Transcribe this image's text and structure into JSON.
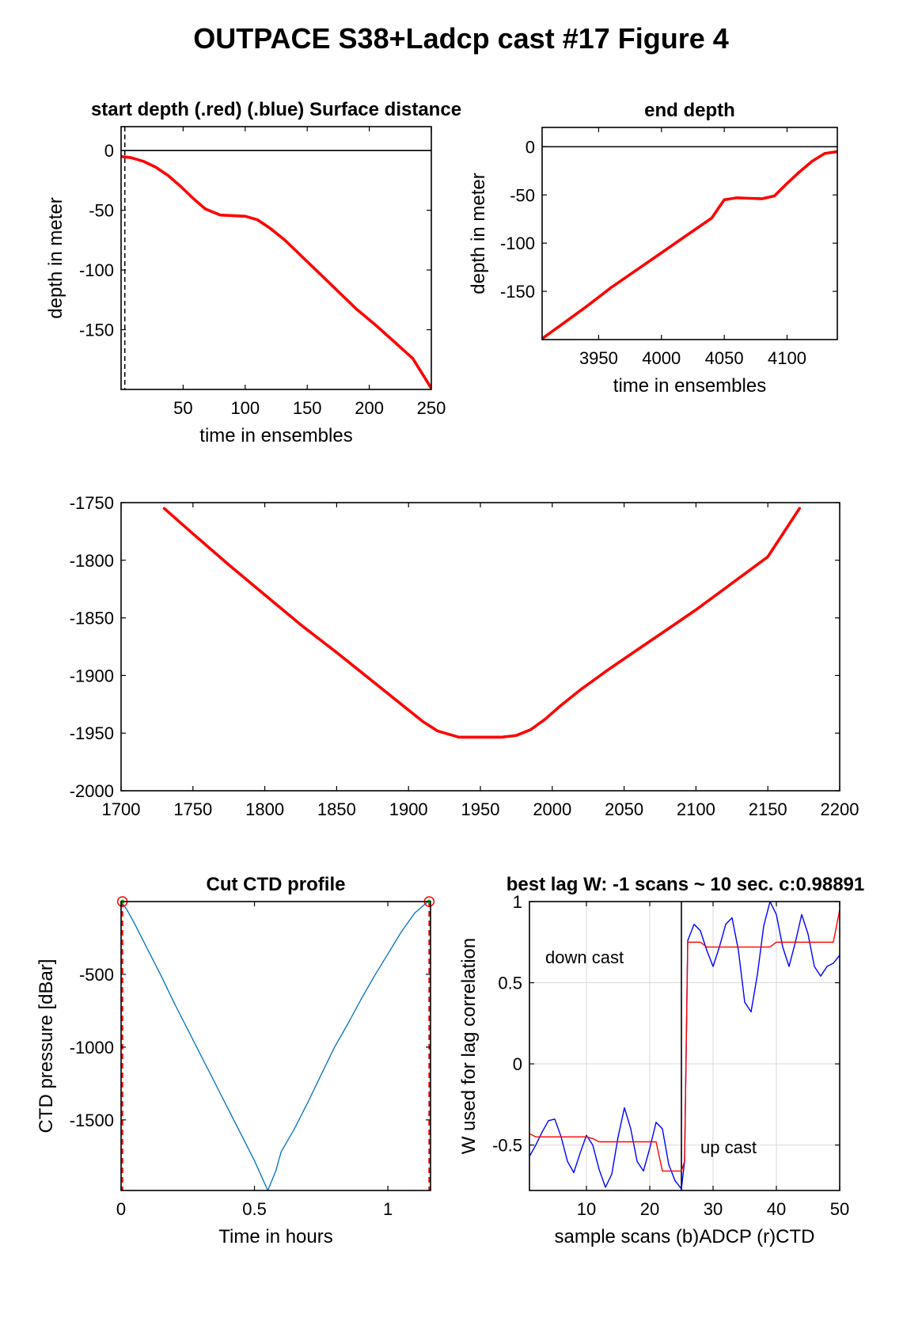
{
  "figure_title": "OUTPACE S38+Ladcp cast #17   Figure 4",
  "colors": {
    "red": "#ff0000",
    "blue": "#0000ff",
    "ctd_blue": "#0072bd",
    "grid": "#d9d9d9",
    "green": "#00cc00"
  },
  "chart_data": [
    {
      "id": "start_depth",
      "type": "line",
      "title": "start depth (.red) (.blue) Surface distance",
      "xlabel": "time in ensembles",
      "ylabel": "depth in meter",
      "xlim": [
        0,
        250
      ],
      "ylim": [
        -200,
        20
      ],
      "xticks": [
        50,
        100,
        150,
        200,
        250
      ],
      "yticks": [
        -150,
        -100,
        -50,
        0
      ],
      "grid": false,
      "hline": 0,
      "vline_dashed": 3,
      "series": [
        {
          "color": "red",
          "width": 3.6,
          "x": [
            0,
            8,
            18,
            28,
            38,
            48,
            58,
            68,
            80,
            90,
            100,
            110,
            120,
            132,
            145,
            160,
            175,
            190,
            205,
            220,
            235,
            250
          ],
          "y": [
            -5,
            -6,
            -9,
            -14,
            -21,
            -30,
            -40,
            -49,
            -54,
            -54.5,
            -55,
            -58,
            -65,
            -75,
            -88,
            -103,
            -118,
            -133,
            -146,
            -160,
            -174,
            -199
          ]
        }
      ]
    },
    {
      "id": "end_depth",
      "type": "line",
      "title": "end depth",
      "xlabel": "time in ensembles",
      "ylabel": "depth in meter",
      "xlim": [
        3905,
        4140
      ],
      "ylim": [
        -200,
        20
      ],
      "xticks": [
        3950,
        4000,
        4050,
        4100
      ],
      "yticks": [
        -150,
        -100,
        -50,
        0
      ],
      "grid": false,
      "hline": 0,
      "series": [
        {
          "color": "red",
          "width": 3.6,
          "x": [
            3905,
            3920,
            3940,
            3960,
            3980,
            4000,
            4020,
            4040,
            4050,
            4060,
            4070,
            4080,
            4090,
            4100,
            4110,
            4120,
            4130,
            4140
          ],
          "y": [
            -199,
            -185,
            -166,
            -146,
            -128,
            -110,
            -92,
            -74,
            -55,
            -53,
            -53.5,
            -54,
            -51,
            -38,
            -26,
            -15,
            -7,
            -5
          ]
        }
      ]
    },
    {
      "id": "bottom_depth",
      "type": "line",
      "title": "",
      "xlabel": "",
      "ylabel": "",
      "xlim": [
        1700,
        2200
      ],
      "ylim": [
        -2000,
        -1750
      ],
      "xticks": [
        1700,
        1750,
        1800,
        1850,
        1900,
        1950,
        2000,
        2050,
        2100,
        2150,
        2200
      ],
      "yticks": [
        -2000,
        -1950,
        -1900,
        -1850,
        -1800,
        -1750
      ],
      "grid": false,
      "series": [
        {
          "color": "red",
          "width": 3.6,
          "x": [
            1730,
            1750,
            1775,
            1800,
            1825,
            1850,
            1875,
            1895,
            1910,
            1920,
            1935,
            1950,
            1965,
            1975,
            1985,
            1995,
            2005,
            2020,
            2040,
            2060,
            2080,
            2100,
            2125,
            2150,
            2172
          ],
          "y": [
            -1755,
            -1777,
            -1804,
            -1830,
            -1856,
            -1880,
            -1905,
            -1925,
            -1940,
            -1948,
            -1953.5,
            -1953.5,
            -1953.5,
            -1952,
            -1947,
            -1938,
            -1927,
            -1912,
            -1894,
            -1877,
            -1860,
            -1843,
            -1820,
            -1797,
            -1755
          ]
        }
      ]
    },
    {
      "id": "cut_ctd",
      "type": "line",
      "title": "Cut CTD profile",
      "xlabel": "Time in hours",
      "ylabel": "CTD pressure [dBar]",
      "xlim": [
        0,
        1.16
      ],
      "ylim": [
        -1985,
        0
      ],
      "xticks": [
        0,
        0.5,
        1
      ],
      "xticklabels": [
        "0",
        "0.5",
        "1"
      ],
      "yticks": [
        -1500,
        -1000,
        -500
      ],
      "grid": false,
      "vlines_dashed_red": [
        0.005,
        1.155
      ],
      "markers": [
        {
          "x": 0.005,
          "y": 0
        },
        {
          "x": 1.155,
          "y": 0
        }
      ],
      "series": [
        {
          "color": "ctd_blue",
          "width": 1.3,
          "x": [
            0.0,
            0.02,
            0.05,
            0.1,
            0.15,
            0.2,
            0.25,
            0.3,
            0.35,
            0.4,
            0.45,
            0.5,
            0.55,
            0.58,
            0.6,
            0.65,
            0.7,
            0.75,
            0.8,
            0.85,
            0.9,
            0.95,
            1.0,
            1.05,
            1.1,
            1.15
          ],
          "y": [
            0,
            -50,
            -150,
            -330,
            -510,
            -700,
            -880,
            -1060,
            -1240,
            -1420,
            -1600,
            -1780,
            -1985,
            -1850,
            -1720,
            -1560,
            -1380,
            -1190,
            -1000,
            -840,
            -670,
            -510,
            -360,
            -210,
            -80,
            0
          ]
        }
      ]
    },
    {
      "id": "best_lag",
      "type": "line",
      "title": "best lag W: -1 scans ~ 10 sec.  c:0.98891",
      "xlabel": "sample scans (b)ADCP (r)CTD",
      "ylabel": "W used for lag correlation",
      "xlim": [
        1,
        50
      ],
      "ylim": [
        -0.78,
        1
      ],
      "xticks": [
        10,
        20,
        30,
        40,
        50
      ],
      "yticks": [
        -0.5,
        0,
        0.5,
        1
      ],
      "grid": true,
      "vline_black": 25,
      "annotations": [
        {
          "text": "down cast",
          "x": 3.5,
          "y": 0.62
        },
        {
          "text": "up cast",
          "x": 28,
          "y": -0.55
        }
      ],
      "series": [
        {
          "name": "ADCP",
          "color": "blue",
          "width": 1.4,
          "x": [
            1,
            2,
            3,
            4,
            5,
            6,
            7,
            8,
            9,
            10,
            11,
            12,
            13,
            14,
            15,
            16,
            17,
            18,
            19,
            20,
            21,
            22,
            23,
            24,
            25,
            25.5,
            26,
            27,
            28,
            29,
            30,
            31,
            32,
            33,
            34,
            35,
            36,
            37,
            38,
            39,
            40,
            41,
            42,
            43,
            44,
            45,
            46,
            47,
            48,
            49,
            50
          ],
          "y": [
            -0.57,
            -0.5,
            -0.42,
            -0.35,
            -0.34,
            -0.45,
            -0.6,
            -0.67,
            -0.55,
            -0.44,
            -0.5,
            -0.65,
            -0.76,
            -0.68,
            -0.45,
            -0.27,
            -0.4,
            -0.6,
            -0.66,
            -0.52,
            -0.36,
            -0.4,
            -0.62,
            -0.72,
            -0.77,
            -0.6,
            0.76,
            0.86,
            0.82,
            0.7,
            0.6,
            0.72,
            0.86,
            0.9,
            0.7,
            0.38,
            0.32,
            0.55,
            0.85,
            1.0,
            0.92,
            0.72,
            0.6,
            0.75,
            0.92,
            0.8,
            0.6,
            0.54,
            0.6,
            0.62,
            0.67
          ]
        },
        {
          "name": "CTD",
          "color": "red",
          "width": 1.4,
          "x": [
            1,
            2,
            3,
            5,
            8,
            10,
            11,
            12,
            14,
            16,
            18,
            20,
            21,
            22,
            23,
            24,
            25,
            25.5,
            26,
            27,
            28,
            29,
            30,
            32,
            35,
            38,
            39,
            40,
            42,
            45,
            47,
            48,
            49,
            50
          ],
          "y": [
            -0.43,
            -0.45,
            -0.45,
            -0.45,
            -0.45,
            -0.45,
            -0.46,
            -0.48,
            -0.48,
            -0.48,
            -0.48,
            -0.48,
            -0.48,
            -0.66,
            -0.66,
            -0.66,
            -0.66,
            -0.6,
            0.75,
            0.75,
            0.75,
            0.72,
            0.72,
            0.72,
            0.72,
            0.72,
            0.72,
            0.75,
            0.75,
            0.75,
            0.75,
            0.75,
            0.75,
            0.95
          ]
        }
      ]
    }
  ]
}
